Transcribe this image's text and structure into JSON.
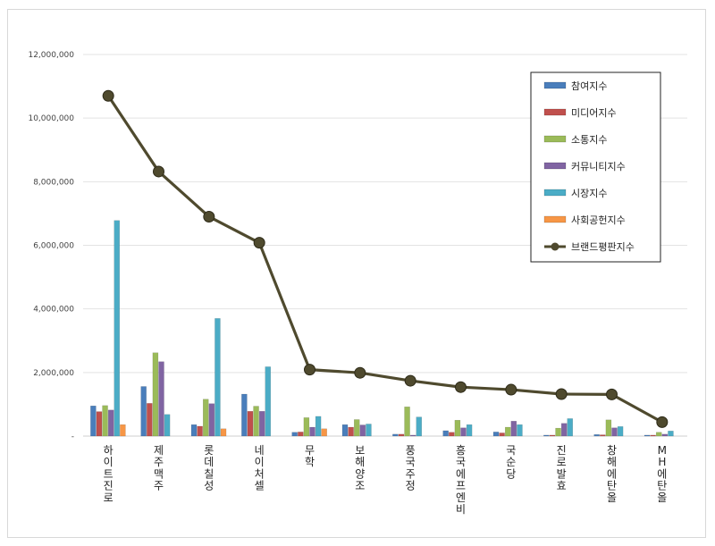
{
  "chart_data": {
    "type": "bar",
    "title": "",
    "xlabel": "",
    "ylabel": "",
    "ylim": [
      0,
      12000000
    ],
    "yticks": [
      0,
      2000000,
      4000000,
      6000000,
      8000000,
      10000000,
      12000000
    ],
    "ytick_labels": [
      "-",
      "2,000,000",
      "4,000,000",
      "6,000,000",
      "8,000,000",
      "10,000,000",
      "12,000,000"
    ],
    "grid": true,
    "legend_position": "top-right",
    "categories": [
      "하이트진로",
      "제주맥주",
      "롯데칠성",
      "네이처셀",
      "무학",
      "보해양조",
      "풍국주정",
      "흥국에프엔비",
      "국순당",
      "진로발효",
      "창해에탄올",
      "MH에탄올"
    ],
    "series": [
      {
        "name": "참여지수",
        "kind": "bar",
        "color": "#4a7ebb",
        "values": [
          950000,
          1560000,
          360000,
          1320000,
          120000,
          360000,
          60000,
          170000,
          130000,
          30000,
          50000,
          30000
        ]
      },
      {
        "name": "미디어지수",
        "kind": "bar",
        "color": "#c0504d",
        "values": [
          770000,
          1030000,
          310000,
          780000,
          130000,
          280000,
          60000,
          120000,
          100000,
          30000,
          40000,
          30000
        ]
      },
      {
        "name": "소통지수",
        "kind": "bar",
        "color": "#9bbb59",
        "values": [
          960000,
          2620000,
          1160000,
          940000,
          580000,
          520000,
          920000,
          500000,
          280000,
          250000,
          510000,
          120000
        ]
      },
      {
        "name": "커뮤니티지수",
        "kind": "bar",
        "color": "#8064a2",
        "values": [
          820000,
          2340000,
          1020000,
          780000,
          280000,
          350000,
          30000,
          260000,
          470000,
          400000,
          260000,
          60000
        ]
      },
      {
        "name": "시장지수",
        "kind": "bar",
        "color": "#4bacc6",
        "values": [
          6780000,
          680000,
          3700000,
          2180000,
          620000,
          380000,
          600000,
          360000,
          360000,
          550000,
          300000,
          160000
        ]
      },
      {
        "name": "사회공헌지수",
        "kind": "bar",
        "color": "#f79646",
        "values": [
          360000,
          0,
          230000,
          0,
          230000,
          0,
          0,
          0,
          0,
          0,
          0,
          0
        ]
      },
      {
        "name": "브랜드평판지수",
        "kind": "line",
        "color": "#4f4a2e",
        "values": [
          10700000,
          8320000,
          6900000,
          6080000,
          2090000,
          1990000,
          1740000,
          1540000,
          1460000,
          1320000,
          1310000,
          440000
        ]
      }
    ]
  }
}
